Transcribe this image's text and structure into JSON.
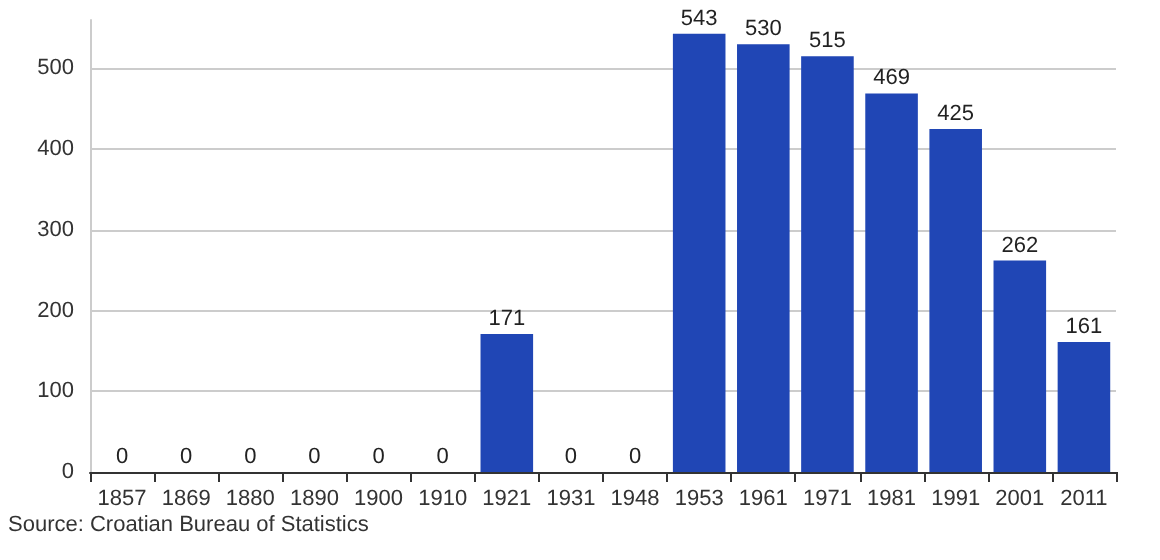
{
  "chart_data": {
    "type": "bar",
    "categories": [
      "1857",
      "1869",
      "1880",
      "1890",
      "1900",
      "1910",
      "1921",
      "1931",
      "1948",
      "1953",
      "1961",
      "1971",
      "1981",
      "1991",
      "2001",
      "2011"
    ],
    "values": [
      0,
      0,
      0,
      0,
      0,
      0,
      171,
      0,
      0,
      543,
      530,
      515,
      469,
      425,
      262,
      161
    ],
    "color": "#2046b5",
    "ylim": [
      0,
      560
    ],
    "yticks": [
      0,
      100,
      200,
      300,
      400,
      500
    ],
    "grid": "y",
    "data_labels": true,
    "annotations": [
      "Source: Croatian Bureau of Statistics"
    ]
  }
}
